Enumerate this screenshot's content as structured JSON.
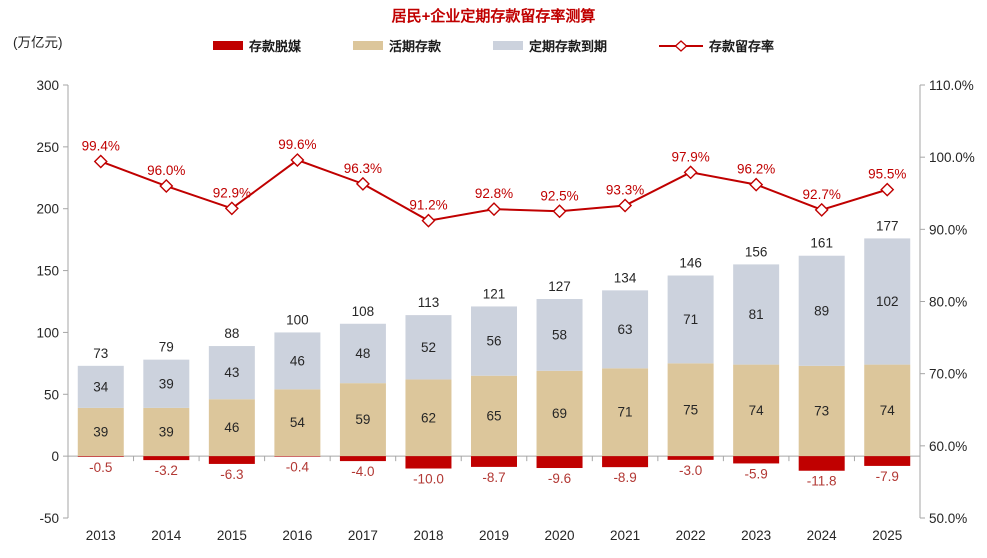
{
  "colors": {
    "title": "#c00000",
    "line": "#c00000",
    "disintermediation_bar": "#c00000",
    "demand_deposit_bar": "#dcc69b",
    "time_deposit_bar": "#ccd2dd",
    "rate_label": "#c00000",
    "negative_label": "#b23834",
    "axis": "#a6a6a6",
    "text": "#262626",
    "marker_fill": "#ffffff"
  },
  "chart_data": {
    "type": "combo-stacked-bar-line",
    "title": "居民+企业定期存款留存率测算",
    "categories": [
      "2013",
      "2014",
      "2015",
      "2016",
      "2017",
      "2018",
      "2019",
      "2020",
      "2021",
      "2022",
      "2023",
      "2024",
      "2025"
    ],
    "series": [
      {
        "name": "存款脱媒",
        "type": "bar",
        "color": "#c00000",
        "values": [
          -0.5,
          -3.2,
          -6.3,
          -0.4,
          -4.0,
          -10.0,
          -8.7,
          -9.6,
          -8.9,
          -3.0,
          -5.9,
          -11.8,
          -7.9
        ]
      },
      {
        "name": "活期存款",
        "type": "bar",
        "color": "#dcc69b",
        "values": [
          39,
          39,
          46,
          54,
          59,
          62,
          65,
          69,
          71,
          75,
          74,
          73,
          74
        ]
      },
      {
        "name": "定期存款到期",
        "type": "bar",
        "color": "#ccd2dd",
        "values": [
          34,
          39,
          43,
          46,
          48,
          52,
          56,
          58,
          63,
          71,
          81,
          89,
          102
        ]
      },
      {
        "name": "存款留存率",
        "type": "line",
        "axis": "right",
        "color": "#c00000",
        "values": [
          99.4,
          96.0,
          92.9,
          99.6,
          96.3,
          91.2,
          92.8,
          92.5,
          93.3,
          97.9,
          96.2,
          92.7,
          95.5
        ]
      }
    ],
    "totals": [
      73,
      79,
      88,
      100,
      108,
      113,
      121,
      127,
      134,
      146,
      156,
      161,
      177
    ],
    "left_axis": {
      "label": "(万亿元)",
      "min": -50,
      "max": 300,
      "step": 50,
      "ticks": [
        "300",
        "250",
        "200",
        "150",
        "100",
        "50",
        "0",
        "-50"
      ]
    },
    "right_axis": {
      "min": 50,
      "max": 110,
      "step": 10,
      "ticks": [
        "110.0%",
        "100.0%",
        "90.0%",
        "80.0%",
        "70.0%",
        "60.0%",
        "50.0%"
      ]
    },
    "legend_position": "top",
    "grid": "off"
  }
}
